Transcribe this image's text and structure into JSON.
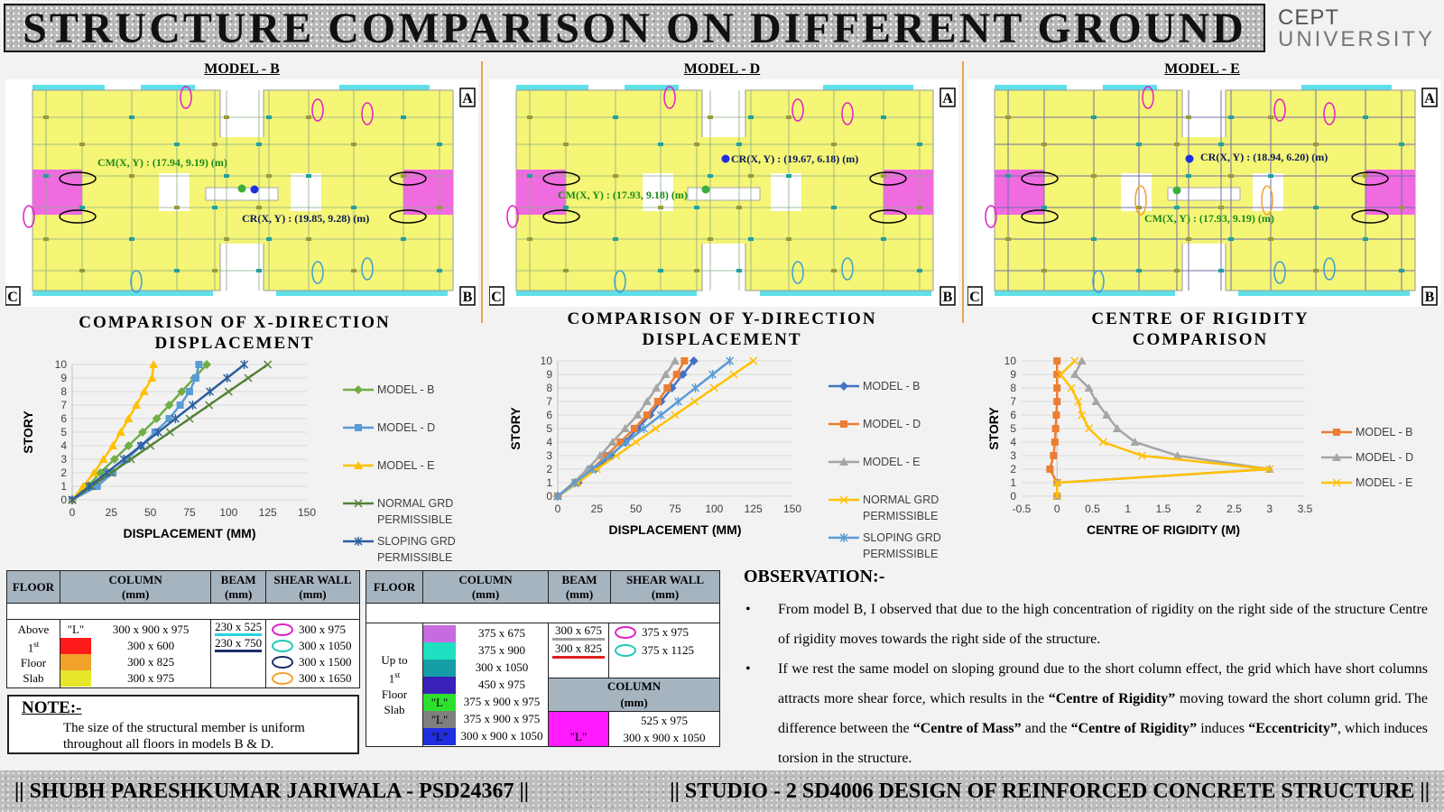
{
  "header": {
    "title": "STRUCTURE COMPARISON ON DIFFERENT GROUND",
    "logo_line1": "CEPT",
    "logo_line2": "UNIVERSITY"
  },
  "plans": [
    {
      "title": "MODEL - B",
      "cm": "CM(X, Y) : (17.94, 9.19) (m)",
      "cr": "CR(X, Y) : (19.85, 9.28) (m)"
    },
    {
      "title": "MODEL - D",
      "cm": "CM(X, Y) : (17.93, 9.18) (m)",
      "cr": "CR(X, Y) : (19.67, 6.18) (m)"
    },
    {
      "title": "MODEL - E",
      "cm": "CM(X, Y) : (17.93, 9.19) (m)",
      "cr": "CR(X, Y) : (18.94, 6.20) (m)"
    }
  ],
  "plan_markers": {
    "a": "A",
    "b": "B",
    "c": "C"
  },
  "chart_data": [
    {
      "type": "line",
      "title": "COMPARISON OF X-DIRECTION DISPLACEMENT",
      "xlabel": "DISPLACEMENT (MM)",
      "ylabel": "STORY",
      "xlim": [
        0,
        150
      ],
      "xticks": [
        0,
        25,
        50,
        75,
        100,
        125,
        150
      ],
      "ylim": [
        0,
        10
      ],
      "yticks": [
        0,
        1,
        2,
        3,
        4,
        5,
        6,
        7,
        8,
        9,
        10
      ],
      "grid": "horizontal",
      "legend": "right",
      "series": [
        {
          "name": "MODEL - B",
          "color": "#70ad47",
          "marker": "diamond",
          "x": [
            0,
            10,
            18,
            27,
            36,
            45,
            54,
            62,
            70,
            78,
            86
          ],
          "y": [
            0,
            1,
            2,
            3,
            4,
            5,
            6,
            7,
            8,
            9,
            10
          ]
        },
        {
          "name": "MODEL - D",
          "color": "#5b9bd5",
          "marker": "square",
          "x": [
            0,
            16,
            26,
            35,
            44,
            53,
            62,
            69,
            75,
            79,
            81
          ],
          "y": [
            0,
            1,
            2,
            3,
            4,
            5,
            6,
            7,
            8,
            9,
            10
          ]
        },
        {
          "name": "MODEL - E",
          "color": "#ffc000",
          "marker": "triangle",
          "x": [
            0,
            7,
            14,
            20,
            26,
            31,
            36,
            41,
            46,
            51,
            52
          ],
          "y": [
            0,
            1,
            2,
            3,
            4,
            5,
            6,
            7,
            8,
            9,
            10
          ]
        },
        {
          "name": "NORMAL GRD PERMISSIBLE",
          "color": "#548235",
          "marker": "x",
          "x": [
            0,
            12.5,
            25,
            37.5,
            50,
            62.5,
            75,
            87.5,
            100,
            112.5,
            125
          ],
          "y": [
            0,
            1,
            2,
            3,
            4,
            5,
            6,
            7,
            8,
            9,
            10
          ]
        },
        {
          "name": "SLOPING GRD PERMISSIBLE",
          "color": "#2e5f9e",
          "marker": "star",
          "x": [
            0,
            11,
            22,
            33,
            44,
            55,
            66,
            77,
            88,
            99,
            110
          ],
          "y": [
            0,
            1,
            2,
            3,
            4,
            5,
            6,
            7,
            8,
            9,
            10
          ]
        }
      ]
    },
    {
      "type": "line",
      "title": "COMPARISON OF Y-DIRECTION DISPLACEMENT",
      "xlabel": "DISPLACEMENT (MM)",
      "ylabel": "STORY",
      "xlim": [
        0,
        150
      ],
      "xticks": [
        0,
        25,
        50,
        75,
        100,
        125,
        150
      ],
      "ylim": [
        0,
        10
      ],
      "yticks": [
        0,
        1,
        2,
        3,
        4,
        5,
        6,
        7,
        8,
        9,
        10
      ],
      "grid": "horizontal",
      "legend": "right",
      "series": [
        {
          "name": "MODEL - B",
          "color": "#4472c4",
          "marker": "diamond",
          "x": [
            0,
            13,
            24,
            34,
            43,
            51,
            59,
            66,
            73,
            80,
            87
          ],
          "y": [
            0,
            1,
            2,
            3,
            4,
            5,
            6,
            7,
            8,
            9,
            10
          ]
        },
        {
          "name": "MODEL - D",
          "color": "#ed7d31",
          "marker": "square",
          "x": [
            0,
            12,
            22,
            31,
            40,
            49,
            57,
            64,
            70,
            76,
            81
          ],
          "y": [
            0,
            1,
            2,
            3,
            4,
            5,
            6,
            7,
            8,
            9,
            10
          ]
        },
        {
          "name": "MODEL - E",
          "color": "#a5a5a5",
          "marker": "triangle",
          "x": [
            0,
            10,
            19,
            27,
            35,
            43,
            51,
            57,
            63,
            69,
            75
          ],
          "y": [
            0,
            1,
            2,
            3,
            4,
            5,
            6,
            7,
            8,
            9,
            10
          ]
        },
        {
          "name": "NORMAL GRD PERMISSIBLE",
          "color": "#ffc000",
          "marker": "x",
          "x": [
            0,
            12.5,
            25,
            37.5,
            50,
            62.5,
            75,
            87.5,
            100,
            112.5,
            125
          ],
          "y": [
            0,
            1,
            2,
            3,
            4,
            5,
            6,
            7,
            8,
            9,
            10
          ]
        },
        {
          "name": "SLOPING GRD PERMISSIBLE",
          "color": "#5b9bd5",
          "marker": "star",
          "x": [
            0,
            11,
            22,
            33,
            44,
            55,
            66,
            77,
            88,
            99,
            110
          ],
          "y": [
            0,
            1,
            2,
            3,
            4,
            5,
            6,
            7,
            8,
            9,
            10
          ]
        }
      ]
    },
    {
      "type": "line",
      "title": "CENTRE OF RIGIDITY COMPARISON",
      "xlabel": "CENTRE OF RIGIDITY (M)",
      "ylabel": "STORY",
      "xlim": [
        -0.5,
        3.5
      ],
      "xticks": [
        "-0.5",
        "0",
        "0.5",
        "1",
        "1.5",
        "2",
        "2.5",
        "3",
        "3.5"
      ],
      "ylim": [
        0,
        10
      ],
      "yticks": [
        0,
        1,
        2,
        3,
        4,
        5,
        6,
        7,
        8,
        9,
        10
      ],
      "grid": "horizontal",
      "legend": "right",
      "series": [
        {
          "name": "MODEL - B",
          "color": "#ed7d31",
          "marker": "square",
          "x": [
            0,
            0,
            -0.1,
            -0.05,
            -0.03,
            -0.02,
            -0.01,
            0,
            0,
            0,
            0
          ],
          "y": [
            0,
            1,
            2,
            3,
            4,
            5,
            6,
            7,
            8,
            9,
            10
          ]
        },
        {
          "name": "MODEL - D",
          "color": "#a5a5a5",
          "marker": "triangle",
          "x": [
            0,
            0,
            3,
            1.7,
            1.1,
            0.85,
            0.7,
            0.55,
            0.45,
            0.25,
            0.35
          ],
          "y": [
            0,
            1,
            2,
            3,
            4,
            5,
            6,
            7,
            8,
            9,
            10
          ]
        },
        {
          "name": "MODEL - E",
          "color": "#ffc000",
          "marker": "x",
          "x": [
            0,
            0,
            3,
            1.2,
            0.65,
            0.45,
            0.35,
            0.3,
            0.2,
            0.05,
            0.25
          ],
          "y": [
            0,
            1,
            2,
            3,
            4,
            5,
            6,
            7,
            8,
            9,
            10
          ]
        }
      ]
    }
  ],
  "table1": {
    "h_floor": "FLOOR",
    "h_column": "COLUMN",
    "h_column_unit": "(mm)",
    "h_beam": "BEAM",
    "h_beam_unit": "(mm)",
    "h_shear": "SHEAR WALL",
    "h_shear_unit": "(mm)",
    "floor_label": [
      "Above",
      "1",
      "st",
      "Floor",
      "Slab"
    ],
    "rows": [
      {
        "swatch": "\"L\"",
        "swatch_color": "#ffffff",
        "column": "300 x 900 x 975",
        "beam": "230 x 525",
        "beam_color": "#27d3e0",
        "shear": "300 x 975",
        "shear_color": "#e020c8"
      },
      {
        "swatch": "",
        "swatch_color": "#ff1a1a",
        "column": "300 x 600",
        "beam": "230 x 750",
        "beam_color": "#1b2d6b",
        "shear": "300 x 1050",
        "shear_color": "#20c8b8"
      },
      {
        "swatch": "",
        "swatch_color": "#f0a22a",
        "column": "300 x 825",
        "beam": "",
        "beam_color": "",
        "shear": "300 x 1500",
        "shear_color": "#1b2d6b"
      },
      {
        "swatch": "",
        "swatch_color": "#e6e62a",
        "column": "300 x 975",
        "beam": "",
        "beam_color": "",
        "shear": "300 x 1650",
        "shear_color": "#f0a22a"
      }
    ]
  },
  "note": {
    "title": "NOTE:-",
    "text": "The size of the structural member is uniform throughout all floors in models B & D."
  },
  "table2": {
    "h_floor": "FLOOR",
    "h_column": "COLUMN",
    "h_column_unit": "(mm)",
    "h_beam": "BEAM",
    "h_beam_unit": "(mm)",
    "h_shear": "SHEAR WALL",
    "h_shear_unit": "(mm)",
    "floor_label": [
      "Up to",
      "1",
      "st",
      "Floor",
      "Slab"
    ],
    "rows": [
      {
        "swatch": "",
        "swatch_color": "#c86ae0",
        "column": "375 x 675"
      },
      {
        "swatch": "",
        "swatch_color": "#1fe0c0",
        "column": "375 x 900"
      },
      {
        "swatch": "",
        "swatch_color": "#169ea8",
        "column": "300 x 1050"
      },
      {
        "swatch": "",
        "swatch_color": "#3a1fb8",
        "column": "450 x 975"
      },
      {
        "swatch": "\"L\"",
        "swatch_color": "#2ee02e",
        "column": "375 x 900 x 975"
      },
      {
        "swatch": "\"L\"",
        "swatch_color": "#808080",
        "column": "375 x 900 x 975"
      },
      {
        "swatch": "\"L\"",
        "swatch_color": "#1f2ee0",
        "column": "300 x 900 x 1050"
      }
    ],
    "beams": [
      {
        "value": "300 x 675",
        "color": "#9e9e9e"
      },
      {
        "value": "300 x 825",
        "color": "#e02020"
      }
    ],
    "shears": [
      {
        "value": "375 x 975",
        "color": "#e020c8"
      },
      {
        "value": "375 x 1125",
        "color": "#20c8b8"
      }
    ],
    "col2_header": "COLUMN",
    "col2_unit": "(mm)",
    "col2_swatch": "\"L\"",
    "col2_swatch_color": "#ff1aff",
    "col2_rows": [
      "525 x 975",
      "300 x 900 x 1050"
    ]
  },
  "observation": {
    "title": "OBSERVATION:-",
    "bullet": "•",
    "p1": "From model B, I observed that due to the high concentration of rigidity on the right side of the structure Centre of rigidity moves towards the right side of the structure.",
    "p2_a": "If we rest the same model on sloping ground due to the short column effect, the grid which have short columns attracts more shear force, which results in the ",
    "p2_b": "“Centre of Rigidity”",
    "p2_c": " moving toward the short column grid. The difference between the ",
    "p2_d": "“Centre of Mass”",
    "p2_e": " and the ",
    "p2_f": "“Centre of Rigidity”",
    "p2_g": " induces ",
    "p2_h": "“Eccentricity”",
    "p2_i": ", which induces torsion in the structure."
  },
  "footer": {
    "left": "|| SHUBH PARESHKUMAR JARIWALA - PSD24367 ||",
    "right": "|| STUDIO - 2 SD4006 DESIGN OF REINFORCED CONCRETE STRUCTURE ||"
  }
}
